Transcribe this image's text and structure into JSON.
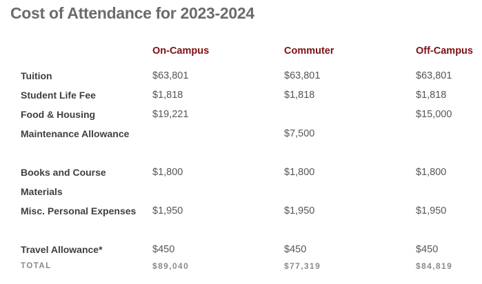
{
  "title": "Cost of Attendance for 2023-2024",
  "columns": [
    "On-Campus",
    "Commuter",
    "Off-Campus"
  ],
  "rows": [
    {
      "label": "Tuition",
      "values": [
        "$63,801",
        "$63,801",
        "$63,801"
      ]
    },
    {
      "label": "Student Life Fee",
      "values": [
        "$1,818",
        "$1,818",
        "$1,818"
      ]
    },
    {
      "label": "Food & Housing",
      "values": [
        "$19,221",
        "",
        "$15,000"
      ]
    },
    {
      "label": "Maintenance Allowance",
      "values": [
        "",
        "$7,500",
        ""
      ]
    },
    {
      "label": "Books and Course Materials",
      "values": [
        "$1,800",
        "$1,800",
        "$1,800"
      ]
    },
    {
      "label": "Misc. Personal Expenses",
      "values": [
        "$1,950",
        "$1,950",
        "$1,950"
      ]
    },
    {
      "label": "Travel Allowance*",
      "values": [
        "$450",
        "$450",
        "$450"
      ]
    }
  ],
  "total": {
    "label": "TOTAL",
    "values": [
      "$89,040",
      "$77,319",
      "$84,819"
    ]
  },
  "colors": {
    "title": "#6b6b6b",
    "column_header": "#7d1015",
    "row_label": "#3f3f3f",
    "value": "#555555",
    "total": "#8a8a8a"
  }
}
